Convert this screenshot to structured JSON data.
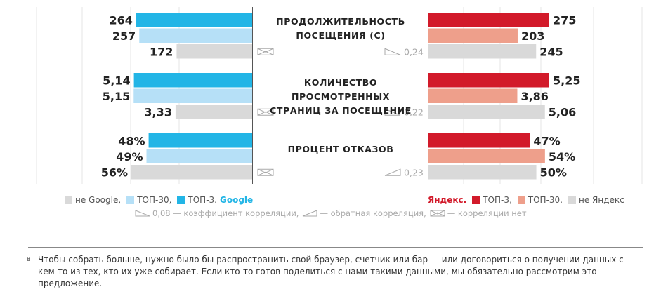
{
  "chart_data": {
    "type": "bar",
    "groups": [
      {
        "title_lines": [
          "ПРОДОЛЖИТЕЛЬНОСТЬ",
          "ПОСЕЩЕНИЯ (С)"
        ],
        "google": [
          {
            "label": "264",
            "value": 264
          },
          {
            "label": "257",
            "value": 257
          },
          {
            "label": "172",
            "value": 172
          }
        ],
        "yandex": [
          {
            "label": "275",
            "value": 275
          },
          {
            "label": "203",
            "value": 203
          },
          {
            "label": "245",
            "value": 245
          }
        ],
        "google_corr": "none",
        "yandex_corr": {
          "type": "direct",
          "value": "0,24"
        }
      },
      {
        "title_lines": [
          "КОЛИЧЕСТВО ПРОСМОТРЕННЫХ",
          "СТРАНИЦ ЗА ПОСЕЩЕНИЕ"
        ],
        "google": [
          {
            "label": "5,14",
            "value": 5.14
          },
          {
            "label": "5,15",
            "value": 5.15
          },
          {
            "label": "3,33",
            "value": 3.33
          }
        ],
        "yandex": [
          {
            "label": "5,25",
            "value": 5.25
          },
          {
            "label": "3,86",
            "value": 3.86
          },
          {
            "label": "5,06",
            "value": 5.06
          }
        ],
        "google_corr": "none",
        "yandex_corr": {
          "type": "direct",
          "value": "0,22"
        }
      },
      {
        "title_lines": [
          "ПРОЦЕНТ ОТКАЗОВ"
        ],
        "google": [
          {
            "label": "48%",
            "value": 48
          },
          {
            "label": "49%",
            "value": 49
          },
          {
            "label": "56%",
            "value": 56
          }
        ],
        "yandex": [
          {
            "label": "47%",
            "value": 47
          },
          {
            "label": "54%",
            "value": 54
          },
          {
            "label": "50%",
            "value": 50
          }
        ],
        "google_corr": "none",
        "yandex_corr": {
          "type": "inverse",
          "value": "0,23"
        }
      }
    ],
    "series_google": [
      "ТОП-3",
      "ТОП-30",
      "не Google"
    ],
    "series_yandex": [
      "ТОП-3",
      "ТОП-30",
      "не Яндекс"
    ],
    "google_colors": [
      "#22b5e6",
      "#b6e0f7",
      "#d9d9d9"
    ],
    "yandex_colors": [
      "#d21a2a",
      "#ee9f8b",
      "#d9d9d9"
    ],
    "grid": true
  },
  "legend": {
    "google": {
      "items": [
        "не Google,",
        "ТОП-30,",
        "ТОП-3."
      ],
      "brand": "Google"
    },
    "yandex": {
      "brand": "Яндекс.",
      "items": [
        "ТОП-3,",
        "ТОП-30,",
        "не Яндекс"
      ]
    }
  },
  "corr_legend": {
    "direct": "0,08 — коэффициент корреляции,",
    "inverse": "— обратная корреляция,",
    "none": "— корреляции нет"
  },
  "footnote": {
    "marker": "8",
    "text": "Чтобы собрать больше, нужно было бы распространить свой браузер, счетчик или бар — или договориться о получении данных с кем-то из тех, кто их уже собирает. Если кто-то готов поделиться с нами такими данными, мы обязательно рассмотрим это предложение."
  }
}
